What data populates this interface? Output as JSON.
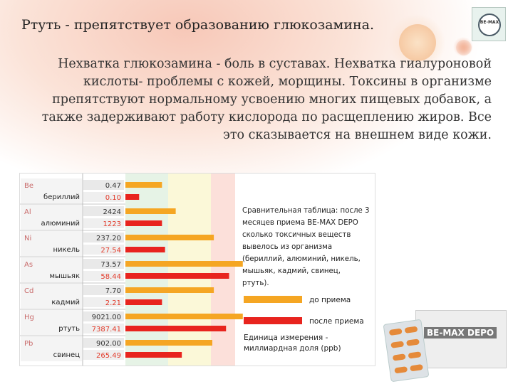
{
  "slide": {
    "title": "Ртуть - препятствует образованию глюкозамина.",
    "body": "Нехватка глюкозамина - боль в суставах. Нехватка гиалуроновой кислоты- проблемы с кожей, морщины. Токсины в организме препятствуют нормальному усвоению многих пищевых добавок, а также задерживают работу кислорода по расщеплению жиров. Все это сказывается на внешнем виде кожи."
  },
  "logo": {
    "text": "BE-MAX"
  },
  "product": {
    "label": "BE-MAX DEPO"
  },
  "chart_data": {
    "type": "bar",
    "orientation": "horizontal",
    "categories": [
      {
        "symbol": "Be",
        "name": "бериллий"
      },
      {
        "symbol": "Al",
        "name": "алюминий"
      },
      {
        "symbol": "Ni",
        "name": "никель"
      },
      {
        "symbol": "As",
        "name": "мышьяк"
      },
      {
        "symbol": "Cd",
        "name": "кадмий"
      },
      {
        "symbol": "Hg",
        "name": "ртуть"
      },
      {
        "symbol": "Pb",
        "name": "свинец"
      }
    ],
    "series": [
      {
        "name": "до приема",
        "color": "#f5a623",
        "labels": [
          "0.47",
          "2424",
          "237.20",
          "73.57",
          "7.70",
          "9021.00",
          "902.00"
        ],
        "values": [
          0.47,
          2424,
          237.2,
          73.57,
          7.7,
          9021.0,
          902.0
        ],
        "bar_fraction": [
          0.24,
          0.33,
          0.58,
          0.77,
          0.58,
          0.77,
          0.57
        ]
      },
      {
        "name": "после приема",
        "color": "#e8241e",
        "labels": [
          "0.10",
          "1223",
          "27.54",
          "58.44",
          "2.21",
          "7387.41",
          "265.49"
        ],
        "values": [
          0.1,
          1223,
          27.54,
          58.44,
          2.21,
          7387.41,
          265.49
        ],
        "bar_fraction": [
          0.09,
          0.24,
          0.26,
          0.68,
          0.24,
          0.66,
          0.37
        ]
      }
    ],
    "legend_title": "Сравнительная таблица: после 3 месяцев приема BE-MAX DEPO сколько токсичных веществ вывелось из организма (бериллий, алюминий, никель, мышьяк, кадмий, свинец, ртуть).",
    "unit_note": "Единица измерения - миллиардная доля (ppb)"
  }
}
